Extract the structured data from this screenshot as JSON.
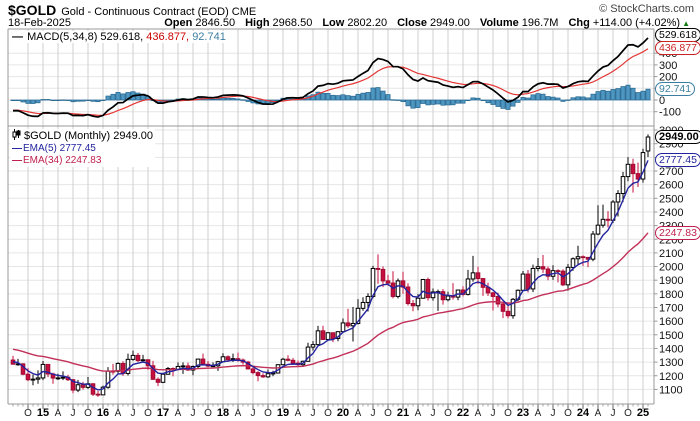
{
  "header": {
    "symbol": "$GOLD",
    "description": "Gold - Continuous Contract (EOD) CME",
    "copyright": "© StockCharts.com",
    "date": "18-Feb-2025",
    "quote": [
      {
        "label": "Open",
        "value": "2846.50"
      },
      {
        "label": "High",
        "value": "2968.50"
      },
      {
        "label": "Low",
        "value": "2802.20"
      },
      {
        "label": "Close",
        "value": "2949.00"
      },
      {
        "label": "Volume",
        "value": "196.7M"
      },
      {
        "label": "Chg",
        "value": "+114.00 (+4.02%)"
      }
    ],
    "chg_icon": "▲"
  },
  "macd_panel": {
    "legend": {
      "swatch": "—",
      "text_macd": "MACD(5,34,8) 529.618,",
      "text_signal": "436.877,",
      "text_hist": "92.741"
    },
    "bubbles": {
      "macd": "529.618",
      "signal": "436.877",
      "hist": "92.741"
    }
  },
  "price_panel": {
    "legend": {
      "title_text": "$GOLD (Monthly) 2949.00",
      "ema5_swatch": "—",
      "ema5_text": "EMA(5) 2777.45",
      "ema34_swatch": "—",
      "ema34_text": "EMA(34) 2247.83"
    },
    "bubbles": {
      "close": "2949.00",
      "ema5": "2777.45",
      "ema34": "2247.83"
    }
  },
  "colors": {
    "candle_up_fill": "#ffffff",
    "candle_up_stroke": "#000000",
    "candle_down_fill": "#c70f3f",
    "candle_down_stroke": "#a00c33",
    "ema5": "#23239f",
    "ema34": "#c23058",
    "macd_line": "#000000",
    "macd_signal": "#e43535",
    "hist_fill": "#4e97c2",
    "hist_stroke": "#2a6a92",
    "grid_h": "#e6e6e6",
    "grid_v": "#cfcfcf",
    "border": "#999999",
    "chg_up": "#157a15"
  },
  "chart_data": [
    {
      "type": "candlestick",
      "title": "$GOLD (Monthly) 2949.00",
      "timeframe": "monthly",
      "start_month": "2014-07",
      "open_rule": "previous_close",
      "first_open": 1315,
      "last_open": 2846.5,
      "high": [
        1346,
        1324,
        1292,
        1256,
        1208,
        1239,
        1308,
        1285,
        1223,
        1215,
        1232,
        1206,
        1175,
        1170,
        1156,
        1191,
        1146,
        1088,
        1128,
        1263,
        1287,
        1299,
        1306,
        1362,
        1384,
        1367,
        1353,
        1321,
        1309,
        1188,
        1220,
        1264,
        1261,
        1297,
        1298,
        1296,
        1275,
        1326,
        1362,
        1308,
        1298,
        1309,
        1365,
        1349,
        1362,
        1369,
        1326,
        1309,
        1264,
        1234,
        1218,
        1246,
        1237,
        1284,
        1331,
        1350,
        1330,
        1312,
        1311,
        1442,
        1454,
        1565,
        1566,
        1520,
        1517,
        1525,
        1619,
        1691,
        1704,
        1761,
        1775,
        1804,
        2005,
        2089,
        2001,
        1939,
        1966,
        1912,
        1962,
        1878,
        1754,
        1798,
        1910,
        1919,
        1839,
        1831,
        1836,
        1815,
        1879,
        1830,
        1856,
        1976,
        2078,
        1999,
        1911,
        1882,
        1814,
        1808,
        1735,
        1738,
        1770,
        1833,
        1967,
        1975,
        2014,
        2063,
        2085,
        2000,
        2010,
        1980,
        1980,
        2019,
        2067,
        2152,
        2083,
        2058,
        2260,
        2449,
        2454,
        2406,
        2488,
        2560,
        2694,
        2802,
        2790,
        2761,
        2863,
        2968.5
      ],
      "low": [
        1281,
        1273,
        1204,
        1160,
        1130,
        1141,
        1168,
        1190,
        1141,
        1170,
        1168,
        1162,
        1072,
        1080,
        1098,
        1104,
        1052,
        1045,
        1061,
        1105,
        1208,
        1209,
        1199,
        1202,
        1310,
        1302,
        1302,
        1243,
        1170,
        1124,
        1146,
        1210,
        1195,
        1240,
        1214,
        1236,
        1204,
        1251,
        1277,
        1262,
        1265,
        1236,
        1303,
        1302,
        1301,
        1302,
        1281,
        1246,
        1210,
        1160,
        1184,
        1184,
        1196,
        1217,
        1281,
        1306,
        1281,
        1266,
        1267,
        1305,
        1384,
        1413,
        1465,
        1465,
        1446,
        1453,
        1520,
        1551,
        1451,
        1576,
        1676,
        1671,
        1768,
        1874,
        1849,
        1859,
        1767,
        1767,
        1801,
        1715,
        1673,
        1680,
        1765,
        1750,
        1750,
        1675,
        1721,
        1745,
        1758,
        1753,
        1781,
        1788,
        1890,
        1871,
        1785,
        1784,
        1678,
        1702,
        1622,
        1621,
        1618,
        1746,
        1827,
        1810,
        1813,
        1965,
        1954,
        1900,
        1902,
        1884,
        1857,
        1823,
        1969,
        2010,
        2004,
        1996,
        2039,
        2229,
        2285,
        2287,
        2319,
        2367,
        2472,
        2625,
        2542,
        2583,
        2615,
        2802.2
      ],
      "close": [
        1285,
        1287,
        1211,
        1171,
        1175,
        1184,
        1283,
        1213,
        1183,
        1184,
        1189,
        1171,
        1095,
        1134,
        1115,
        1141,
        1065,
        1060,
        1116,
        1234,
        1233,
        1290,
        1217,
        1320,
        1349,
        1311,
        1317,
        1273,
        1174,
        1152,
        1211,
        1253,
        1247,
        1268,
        1272,
        1242,
        1268,
        1322,
        1284,
        1271,
        1273,
        1303,
        1339,
        1318,
        1325,
        1315,
        1300,
        1250,
        1223,
        1201,
        1192,
        1215,
        1220,
        1281,
        1321,
        1313,
        1292,
        1281,
        1306,
        1410,
        1428,
        1529,
        1466,
        1515,
        1473,
        1523,
        1587,
        1566,
        1583,
        1694,
        1737,
        1781,
        1986,
        1979,
        1895,
        1879,
        1781,
        1895,
        1850,
        1729,
        1713,
        1768,
        1905,
        1772,
        1814,
        1816,
        1757,
        1784,
        1776,
        1828,
        1796,
        1909,
        1954,
        1912,
        1848,
        1807,
        1781,
        1726,
        1672,
        1640,
        1760,
        1826,
        1945,
        1836,
        1986,
        1999,
        1982,
        1929,
        1970,
        1966,
        1866,
        1994,
        2057,
        2072,
        2067,
        2054,
        2238,
        2303,
        2346,
        2339,
        2473,
        2535,
        2659,
        2749,
        2681,
        2641,
        2835,
        2949
      ],
      "yticks": [
        3000,
        2900,
        2800,
        2700,
        2600,
        2500,
        2400,
        2300,
        2200,
        2100,
        2000,
        1900,
        1800,
        1700,
        1600,
        1500,
        1400,
        1300,
        1200,
        1100
      ],
      "ylim": [
        990,
        3020
      ],
      "x_tick_labels": [
        "O",
        "15",
        "A",
        "J",
        "O",
        "16",
        "A",
        "J",
        "O",
        "17",
        "A",
        "J",
        "O",
        "18",
        "A",
        "J",
        "O",
        "19",
        "A",
        "J",
        "O",
        "20",
        "A",
        "J",
        "O",
        "21",
        "A",
        "J",
        "O",
        "22",
        "A",
        "J",
        "O",
        "23",
        "A",
        "J",
        "O",
        "24",
        "A",
        "J",
        "O",
        "25"
      ],
      "overlays": [
        {
          "type": "ema",
          "period": 5,
          "last_value": 2777.45
        },
        {
          "type": "ema",
          "period": 34,
          "last_value": 2247.83
        }
      ]
    },
    {
      "type": "macd",
      "fast": 5,
      "slow": 34,
      "signal_period": 8,
      "derived_from": "close",
      "last_values": {
        "macd": 529.618,
        "signal": 436.877,
        "hist": 92.741
      },
      "yticks": [
        400,
        300,
        200,
        100,
        0,
        -100
      ],
      "ylim": [
        -220,
        605
      ]
    }
  ]
}
